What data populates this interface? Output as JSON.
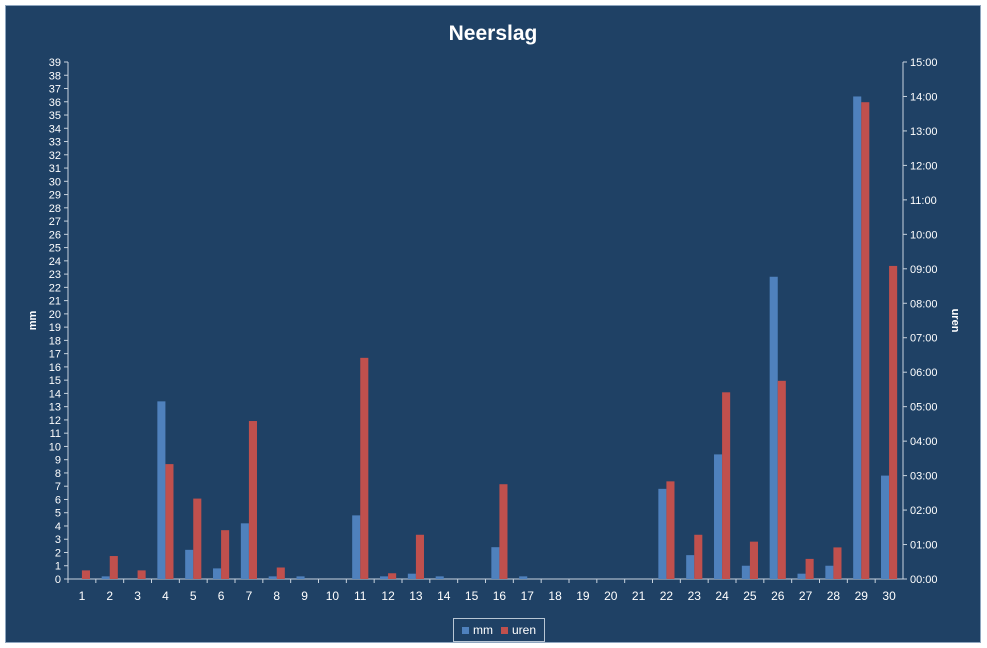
{
  "chart_data": {
    "type": "bar",
    "title": "Neerslag",
    "ylabel": "mm",
    "y2label": "uren",
    "ylim": [
      0,
      39
    ],
    "y2lim": [
      0,
      900
    ],
    "y2_ticks": [
      "00:00",
      "01:00",
      "02:00",
      "03:00",
      "04:00",
      "05:00",
      "06:00",
      "07:00",
      "08:00",
      "09:00",
      "10:00",
      "11:00",
      "12:00",
      "13:00",
      "14:00",
      "15:00"
    ],
    "categories": [
      "1",
      "2",
      "3",
      "4",
      "5",
      "6",
      "7",
      "8",
      "9",
      "10",
      "11",
      "12",
      "13",
      "14",
      "15",
      "16",
      "17",
      "18",
      "19",
      "20",
      "21",
      "22",
      "23",
      "24",
      "25",
      "26",
      "27",
      "28",
      "29",
      "30"
    ],
    "legend_position": "bottom",
    "grid": false,
    "series": [
      {
        "name": "mm",
        "axis": "left",
        "color": "#4f81bd",
        "values": [
          0,
          0.2,
          0,
          13.4,
          2.2,
          0.8,
          4.2,
          0.2,
          0.2,
          0,
          4.8,
          0.2,
          0.4,
          0.2,
          0,
          2.4,
          0.2,
          0,
          0,
          0,
          0,
          6.8,
          1.8,
          9.4,
          1.0,
          22.8,
          0.4,
          1.0,
          36.4,
          7.8
        ]
      },
      {
        "name": "uren",
        "axis": "right",
        "color": "#c0504d",
        "values": [
          15,
          40,
          15,
          200,
          140,
          85,
          275,
          20,
          0,
          0,
          385,
          10,
          77,
          0,
          0,
          165,
          0,
          0,
          0,
          0,
          0,
          170,
          77,
          325,
          65,
          345,
          35,
          55,
          830,
          545
        ]
      }
    ]
  }
}
